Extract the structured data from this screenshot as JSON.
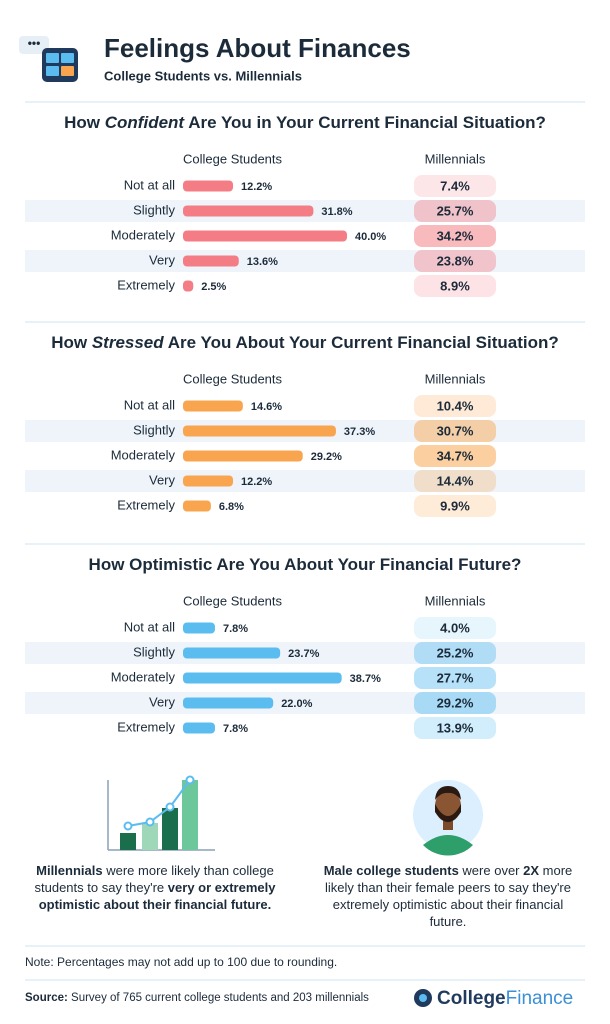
{
  "header": {
    "title": "Feelings About Finances",
    "subtitle": "College Students vs. Millennials"
  },
  "chart_data": [
    {
      "type": "bar",
      "title": [
        "How",
        "Confident",
        "Are You in Your Current Financial Situation?"
      ],
      "categories": [
        "Not at all",
        "Slightly",
        "Moderately",
        "Very",
        "Extremely"
      ],
      "series": [
        {
          "name": "College Students",
          "color": "#f47c85",
          "values": [
            12.2,
            31.8,
            40,
            13.6,
            2.5
          ],
          "value_labels": [
            "12.2%",
            "31.8%",
            "40.0%",
            "13.6%",
            "2.5%"
          ]
        },
        {
          "name": "Millennials",
          "color": "#f47c85",
          "values": [
            7.4,
            25.7,
            34.2,
            23.8,
            8.9
          ],
          "value_labels": [
            "7.4%",
            "25.7%",
            "34.2%",
            "23.8%",
            "8.9%"
          ]
        }
      ]
    },
    {
      "type": "bar",
      "title": [
        "How",
        "Stressed",
        "Are You About Your Current Financial Situation?"
      ],
      "categories": [
        "Not at all",
        "Slightly",
        "Moderately",
        "Very",
        "Extremely"
      ],
      "series": [
        {
          "name": "College Students",
          "color": "#f9a54f",
          "values": [
            14.6,
            37.3,
            29.2,
            12.2,
            6.8
          ],
          "value_labels": [
            "14.6%",
            "37.3%",
            "29.2%",
            "12.2%",
            "6.8%"
          ]
        },
        {
          "name": "Millennials",
          "color": "#f9a54f",
          "values": [
            10.4,
            30.7,
            34.7,
            14.4,
            9.9
          ],
          "value_labels": [
            "10.4%",
            "30.7%",
            "34.7%",
            "14.4%",
            "9.9%"
          ]
        }
      ]
    },
    {
      "type": "bar",
      "title": [
        "How Optimistic Are You About Your Financial Future?"
      ],
      "categories": [
        "Not at all",
        "Slightly",
        "Moderately",
        "Very",
        "Extremely"
      ],
      "series": [
        {
          "name": "College Students",
          "color": "#5bbcf0",
          "values": [
            7.8,
            23.7,
            38.7,
            22,
            7.8
          ],
          "value_labels": [
            "7.8%",
            "23.7%",
            "38.7%",
            "22.0%",
            "7.8%"
          ]
        },
        {
          "name": "Millennials",
          "color": "#5bbcf0",
          "values": [
            4,
            25.2,
            27.7,
            29.2,
            13.9
          ],
          "value_labels": [
            "4.0%",
            "25.2%",
            "27.7%",
            "29.2%",
            "13.9%"
          ]
        }
      ]
    }
  ],
  "findings": [
    [
      "Millennials",
      "were more likely than college students to say they're",
      "very or extremely optimistic about their financial future."
    ],
    [
      "Male college students",
      "were over",
      "2X",
      "more likely than their female peers to say they're extremely optimistic about their financial future."
    ]
  ],
  "note": "Note: Percentages may not add up to 100 due to rounding.",
  "source": [
    "Source:",
    "Survey of 765 current college students and 203 millennials"
  ],
  "logo": [
    "College",
    "Finance"
  ]
}
